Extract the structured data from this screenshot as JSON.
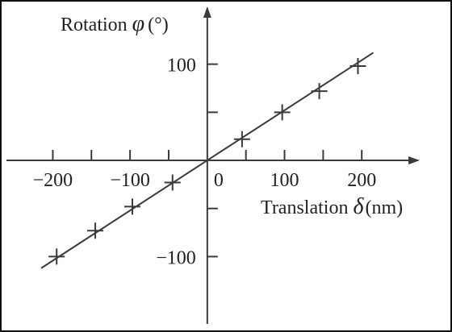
{
  "colors": {
    "ink": "#3a3a3a",
    "text": "#222222",
    "background": "#ffffff"
  },
  "chart_data": {
    "type": "scatter",
    "xlabel": {
      "prefix": "Translation ",
      "symbol": "δ",
      "unit": "(nm)"
    },
    "ylabel": {
      "prefix": "Rotation ",
      "symbol": "φ",
      "unit": "(°)"
    },
    "xlim": [
      -260,
      275
    ],
    "ylim": [
      -170,
      160
    ],
    "x_ticks": [
      -200,
      -150,
      -100,
      -50,
      50,
      100,
      150,
      200
    ],
    "x_tick_labels": [
      {
        "value": -200,
        "label": "−200"
      },
      {
        "value": -100,
        "label": "−100"
      },
      {
        "value": 0,
        "label": "0"
      },
      {
        "value": 100,
        "label": "100"
      },
      {
        "value": 200,
        "label": "200"
      }
    ],
    "y_ticks": [
      -100,
      -50,
      50,
      100
    ],
    "y_tick_labels": [
      {
        "value": 100,
        "label": "100"
      },
      {
        "value": -100,
        "label": "−100"
      }
    ],
    "grid": false,
    "marker": "+",
    "series": [
      {
        "points": [
          {
            "x": -195,
            "y": -100
          },
          {
            "x": -145,
            "y": -73
          },
          {
            "x": -97,
            "y": -48
          },
          {
            "x": -45,
            "y": -23
          },
          {
            "x": 45,
            "y": 22
          },
          {
            "x": 97,
            "y": 50
          },
          {
            "x": 145,
            "y": 72
          },
          {
            "x": 195,
            "y": 98
          }
        ]
      }
    ],
    "fit_line": {
      "x": [
        -215,
        215
      ],
      "y": [
        -112,
        112
      ]
    }
  }
}
